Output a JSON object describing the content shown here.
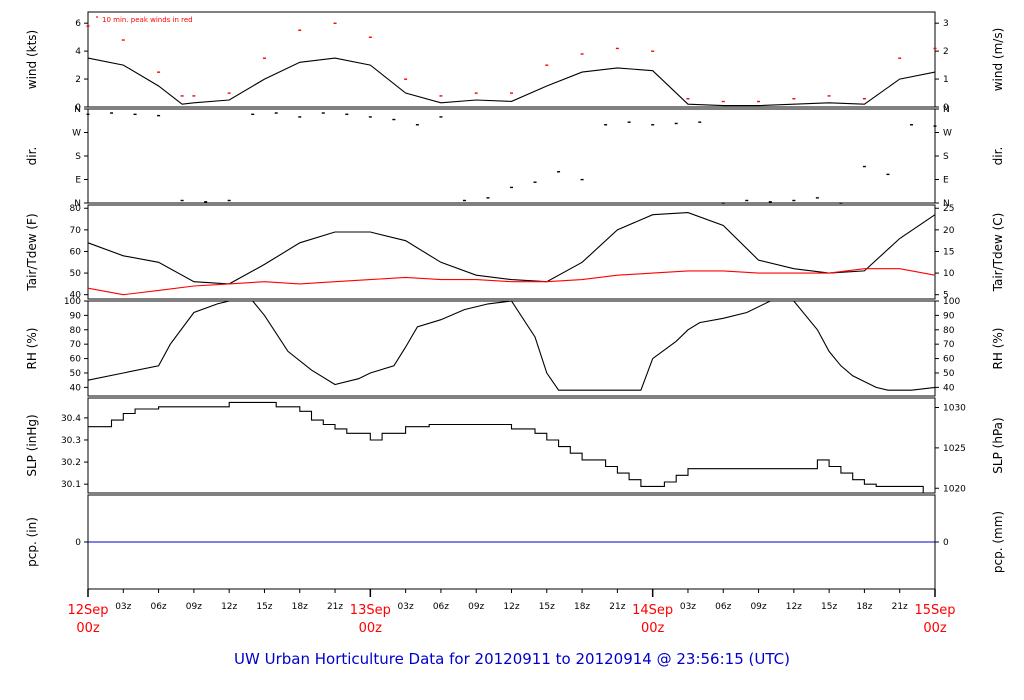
{
  "footer": {
    "title": "UW Urban Horticulture Data for 20120911  to  20120914 @ 23:56:15  (UTC)"
  },
  "colors": {
    "axis": "#000000",
    "series_black": "#000000",
    "series_red": "#ff0000",
    "precip_line": "#0000cc",
    "day_label": "#ff0000",
    "title": "#0000cc"
  },
  "chart_data": [
    {
      "type": "line",
      "panel": "wind",
      "ylabel_left": "wind (kts)",
      "ylabel_right": "wind (m/s)",
      "annotation": "10 min. peak winds in red",
      "ylim": [
        0,
        6.8
      ],
      "yticks_left": [
        0,
        2,
        4,
        6
      ],
      "yticks_right": [
        0,
        1,
        2,
        3
      ],
      "series": [
        {
          "name": "wind speed",
          "style": "black",
          "x_hours": [
            0,
            3,
            6,
            8,
            9,
            12,
            15,
            18,
            21,
            24,
            27,
            30,
            33,
            36,
            39,
            42,
            45,
            48,
            51,
            54,
            57,
            60,
            63,
            66,
            69,
            72
          ],
          "values": [
            3.5,
            3.0,
            1.5,
            0.2,
            0.3,
            0.5,
            2.0,
            3.2,
            3.5,
            3.0,
            1.0,
            0.3,
            0.5,
            0.4,
            1.5,
            2.5,
            2.8,
            2.6,
            0.2,
            0.1,
            0.1,
            0.2,
            0.3,
            0.2,
            2.0,
            2.5
          ]
        },
        {
          "name": "10 min. peak winds",
          "style": "red-dots",
          "x_hours": [
            0,
            3,
            6,
            8,
            9,
            12,
            15,
            18,
            21,
            24,
            27,
            30,
            33,
            36,
            39,
            42,
            45,
            48,
            51,
            54,
            57,
            60,
            63,
            66,
            69,
            72
          ],
          "values": [
            5.8,
            4.8,
            2.5,
            0.8,
            0.8,
            1.0,
            3.5,
            5.5,
            6.0,
            5.0,
            2.0,
            0.8,
            1.0,
            1.0,
            3.0,
            3.8,
            4.2,
            4.0,
            0.6,
            0.4,
            0.4,
            0.6,
            0.8,
            0.6,
            3.5,
            4.2
          ]
        }
      ]
    },
    {
      "type": "scatter",
      "panel": "direction",
      "ylabel_left": "dir.",
      "ylabel_right": "dir.",
      "yticks_left": [
        "N",
        "E",
        "S",
        "W",
        "N"
      ],
      "yticks_right": [
        "N",
        "E",
        "S",
        "W",
        "N"
      ],
      "ylim": [
        0,
        360
      ],
      "series": [
        {
          "name": "wind direction",
          "style": "black-dots",
          "x_hours": [
            0,
            2,
            4,
            6,
            8,
            10,
            12,
            14,
            16,
            18,
            20,
            22,
            24,
            26,
            28,
            30,
            32,
            34,
            36,
            38,
            40,
            42,
            44,
            46,
            48,
            50,
            52,
            54,
            56,
            58,
            60,
            62,
            64,
            66,
            68,
            70,
            72
          ],
          "values": [
            340,
            345,
            340,
            335,
            10,
            5,
            10,
            340,
            345,
            330,
            345,
            340,
            330,
            320,
            300,
            330,
            10,
            20,
            60,
            80,
            120,
            90,
            300,
            310,
            300,
            305,
            310,
            0,
            10,
            5,
            10,
            20,
            0,
            140,
            110,
            300,
            295
          ]
        }
      ]
    },
    {
      "type": "line",
      "panel": "temperature",
      "ylabel_left": "Tair/Tdew (F)",
      "ylabel_right": "Tair/Tdew (C)",
      "ylim": [
        38,
        81.5
      ],
      "yticks_left": [
        40,
        50,
        60,
        70,
        80
      ],
      "yticks_right": [
        5,
        10,
        15,
        20,
        25
      ],
      "series": [
        {
          "name": "Tair",
          "style": "black",
          "x_hours": [
            0,
            3,
            6,
            9,
            12,
            15,
            18,
            21,
            24,
            27,
            30,
            33,
            36,
            39,
            42,
            45,
            48,
            51,
            54,
            57,
            60,
            63,
            66,
            69,
            72
          ],
          "values": [
            64,
            58,
            55,
            46,
            45,
            54,
            64,
            69,
            69,
            65,
            55,
            49,
            47,
            46,
            55,
            70,
            77,
            78,
            72,
            56,
            52,
            50,
            51,
            66,
            77
          ]
        },
        {
          "name": "Tdew",
          "style": "red",
          "x_hours": [
            0,
            3,
            6,
            9,
            12,
            15,
            18,
            21,
            24,
            27,
            30,
            33,
            36,
            39,
            42,
            45,
            48,
            51,
            54,
            57,
            60,
            63,
            66,
            69,
            72
          ],
          "values": [
            43,
            40,
            42,
            44,
            45,
            46,
            45,
            46,
            47,
            48,
            47,
            47,
            46,
            46,
            47,
            49,
            50,
            51,
            51,
            50,
            50,
            50,
            52,
            52,
            49
          ]
        }
      ]
    },
    {
      "type": "line",
      "panel": "humidity",
      "ylabel_left": "RH (%)",
      "ylabel_right": "RH (%)",
      "ylim": [
        34,
        100
      ],
      "yticks_left": [
        40,
        50,
        60,
        70,
        80,
        90,
        100
      ],
      "yticks_right": [
        40,
        50,
        60,
        70,
        80,
        90,
        100
      ],
      "series": [
        {
          "name": "RH",
          "style": "black",
          "x_hours": [
            0,
            3,
            6,
            7,
            9,
            11,
            12,
            14,
            15,
            17,
            19,
            21,
            23,
            24,
            26,
            27,
            28,
            30,
            32,
            34,
            36,
            38,
            39,
            40,
            42,
            45,
            47,
            48,
            50,
            51,
            52,
            54,
            56,
            58,
            60,
            62,
            63,
            64,
            65,
            67,
            68,
            70,
            72
          ],
          "values": [
            45,
            50,
            55,
            70,
            92,
            98,
            100,
            100,
            90,
            65,
            52,
            42,
            46,
            50,
            55,
            68,
            82,
            87,
            94,
            98,
            100,
            75,
            50,
            38,
            38,
            38,
            38,
            60,
            72,
            80,
            85,
            88,
            92,
            100,
            100,
            80,
            65,
            55,
            48,
            40,
            38,
            38,
            40
          ]
        }
      ]
    },
    {
      "type": "line",
      "panel": "pressure",
      "ylabel_left": "SLP (inHg)",
      "ylabel_right": "SLP (hPa)",
      "ylim": [
        30.06,
        30.49
      ],
      "yticks_left": [
        30.1,
        30.2,
        30.3,
        30.4
      ],
      "yticks_right": [
        1020,
        1025,
        1030
      ],
      "series": [
        {
          "name": "SLP",
          "style": "black-step",
          "x_hours": [
            0,
            2,
            3,
            4,
            6,
            8,
            10,
            12,
            13,
            14,
            16,
            18,
            19,
            20,
            21,
            22,
            24,
            25,
            27,
            29,
            30,
            32,
            34,
            36,
            38,
            39,
            40,
            41,
            42,
            44,
            45,
            46,
            47,
            48,
            49,
            50,
            51,
            52,
            53,
            54,
            56,
            58,
            60,
            62,
            63,
            64,
            65,
            66,
            67,
            68,
            69,
            70,
            71,
            72
          ],
          "values": [
            30.36,
            30.39,
            30.42,
            30.44,
            30.45,
            30.45,
            30.45,
            30.47,
            30.47,
            30.47,
            30.45,
            30.43,
            30.39,
            30.37,
            30.35,
            30.33,
            30.3,
            30.33,
            30.36,
            30.37,
            30.37,
            30.37,
            30.37,
            30.35,
            30.33,
            30.3,
            30.27,
            30.24,
            30.21,
            30.18,
            30.15,
            30.12,
            30.09,
            30.09,
            30.11,
            30.14,
            30.17,
            30.17,
            30.17,
            30.17,
            30.17,
            30.17,
            30.17,
            30.21,
            30.18,
            30.15,
            30.12,
            30.1,
            30.09,
            30.09,
            30.09,
            30.09,
            30.06,
            30.06
          ]
        }
      ]
    },
    {
      "type": "line",
      "panel": "precipitation",
      "ylabel_left": "pcp. (in)",
      "ylabel_right": "pcp. (mm)",
      "ylim": [
        -1,
        1
      ],
      "yticks_left": [
        0
      ],
      "yticks_right": [
        0
      ],
      "series": [
        {
          "name": "precipitation",
          "style": "blue",
          "x_hours": [
            0,
            72
          ],
          "values": [
            0,
            0
          ]
        }
      ]
    }
  ],
  "x_axis": {
    "xlim_hours": [
      0,
      72
    ],
    "hour_ticks": [
      {
        "hour": 3,
        "label": "03z"
      },
      {
        "hour": 6,
        "label": "06z"
      },
      {
        "hour": 9,
        "label": "09z"
      },
      {
        "hour": 12,
        "label": "12z"
      },
      {
        "hour": 15,
        "label": "15z"
      },
      {
        "hour": 18,
        "label": "18z"
      },
      {
        "hour": 21,
        "label": "21z"
      },
      {
        "hour": 27,
        "label": "03z"
      },
      {
        "hour": 30,
        "label": "06z"
      },
      {
        "hour": 33,
        "label": "09z"
      },
      {
        "hour": 36,
        "label": "12z"
      },
      {
        "hour": 39,
        "label": "15z"
      },
      {
        "hour": 42,
        "label": "18z"
      },
      {
        "hour": 45,
        "label": "21z"
      },
      {
        "hour": 51,
        "label": "03z"
      },
      {
        "hour": 54,
        "label": "06z"
      },
      {
        "hour": 57,
        "label": "09z"
      },
      {
        "hour": 60,
        "label": "12z"
      },
      {
        "hour": 63,
        "label": "15z"
      },
      {
        "hour": 66,
        "label": "18z"
      },
      {
        "hour": 69,
        "label": "21z"
      }
    ],
    "day_ticks": [
      {
        "hour": 0,
        "day": "12Sep",
        "time": "00z"
      },
      {
        "hour": 24,
        "day": "13Sep",
        "time": "00z"
      },
      {
        "hour": 48,
        "day": "14Sep",
        "time": "00z"
      },
      {
        "hour": 72,
        "day": "15Sep",
        "time": "00z"
      }
    ]
  }
}
